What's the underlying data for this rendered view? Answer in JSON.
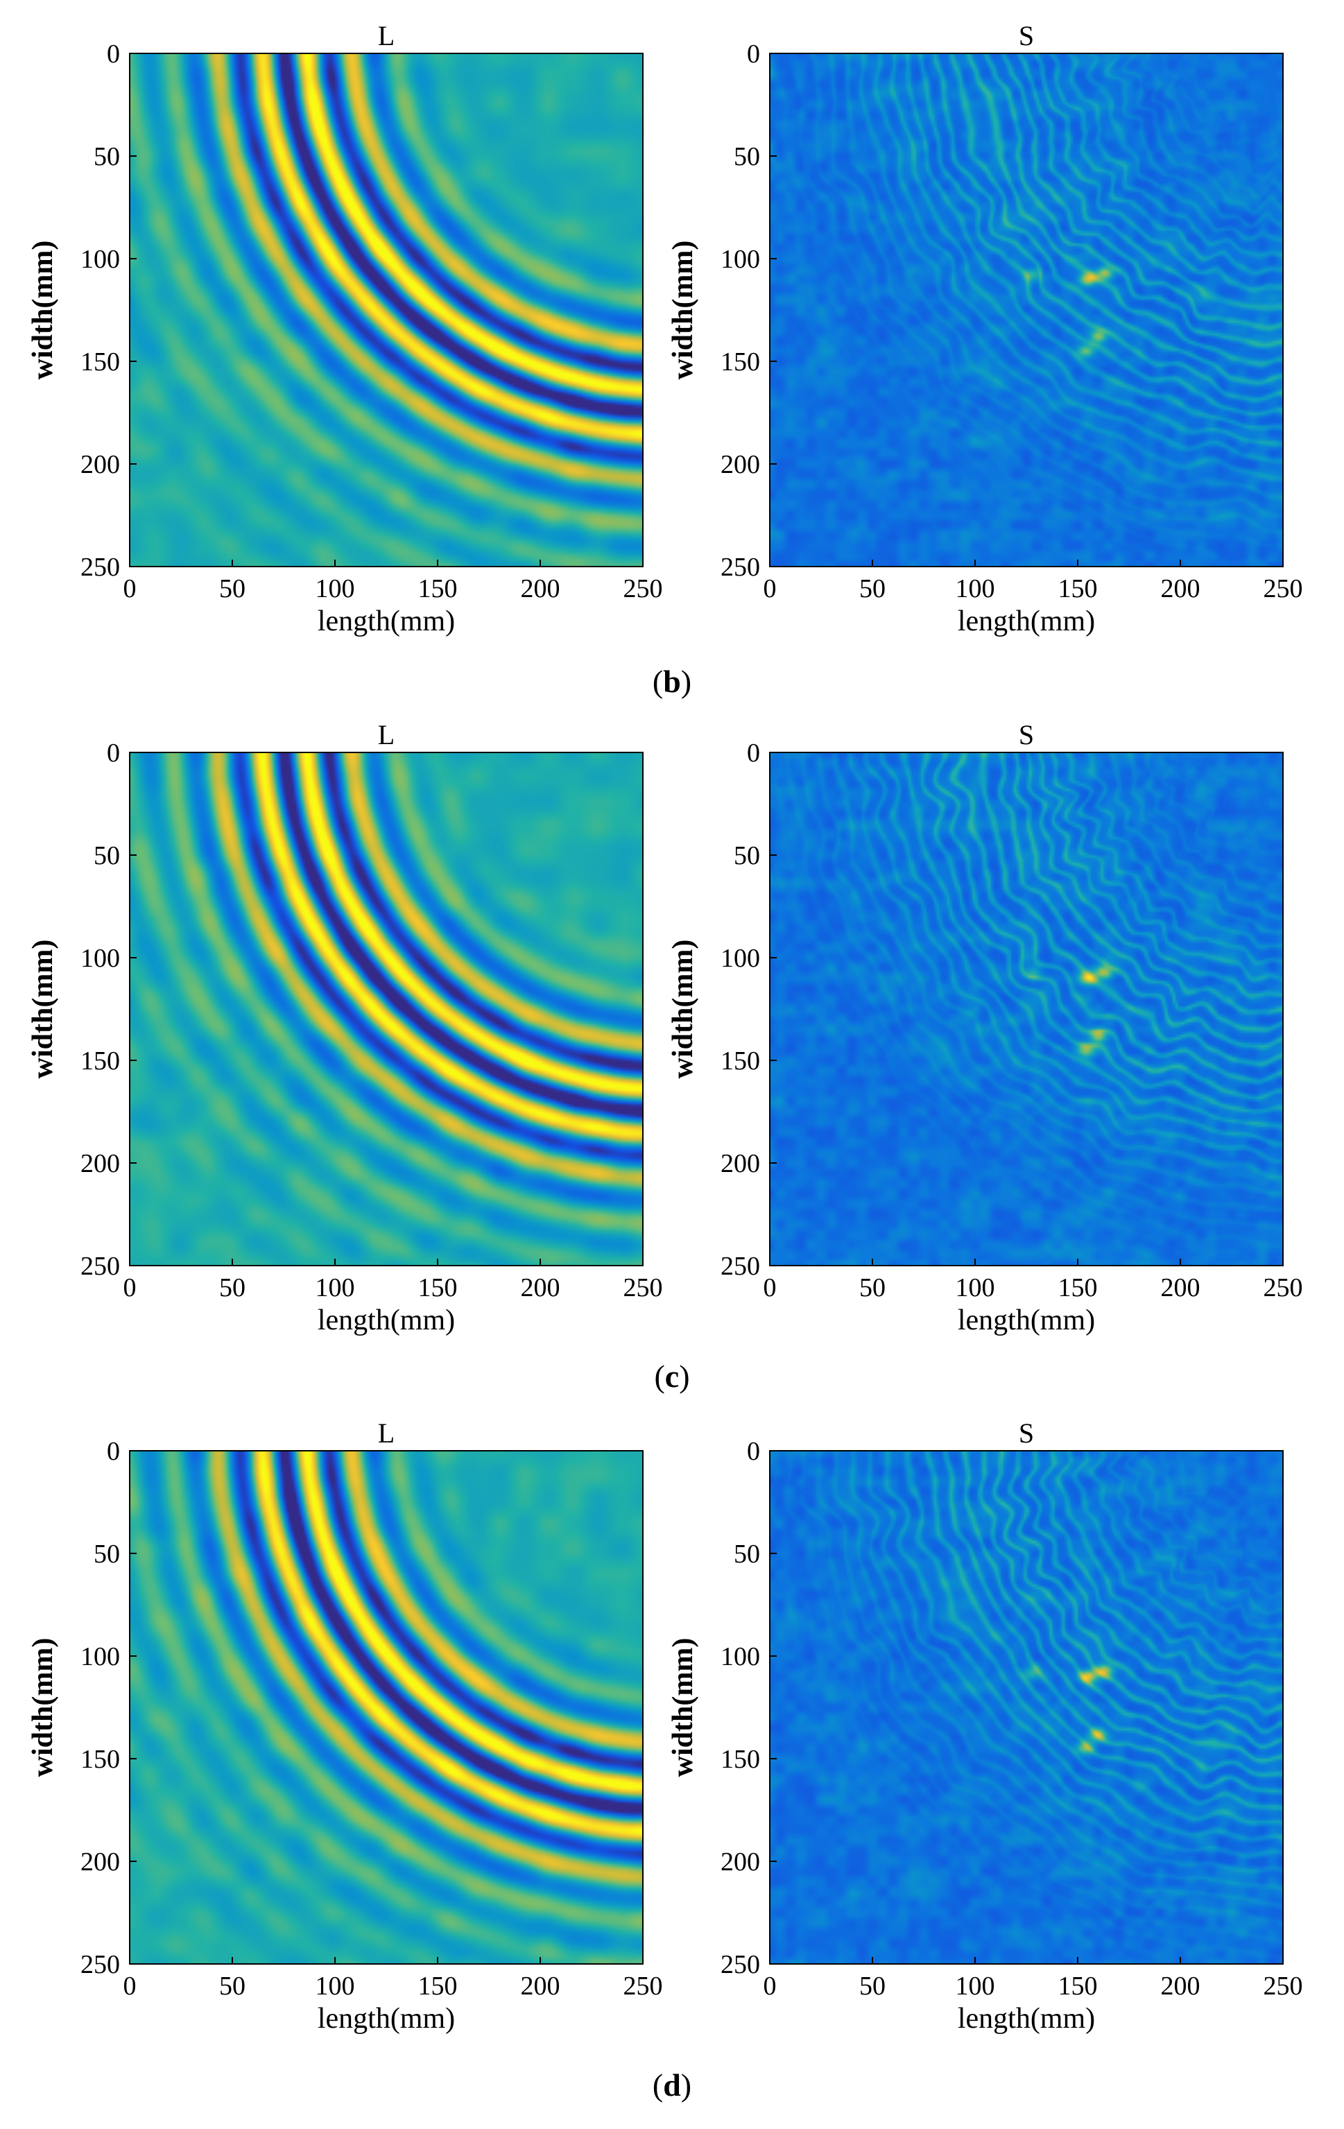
{
  "figure": {
    "panel_labels": [
      "(b)",
      "(c)",
      "(d)"
    ],
    "panel_letters": [
      "b",
      "c",
      "d"
    ]
  },
  "chart_data": [
    {
      "type": "heatmap",
      "panel": "b",
      "title": "L",
      "xlabel": "length(mm)",
      "ylabel": "width(mm)",
      "xlim": [
        0,
        250
      ],
      "ylim": [
        250,
        0
      ],
      "xticks": [
        0,
        50,
        100,
        150,
        200,
        250
      ],
      "yticks": [
        0,
        50,
        100,
        150,
        200,
        250
      ],
      "colormap": "parula",
      "field": "wavefront",
      "colors": {
        "background": "#2fb5a3",
        "low": "#3a2db8",
        "high": "#f8e61c",
        "mid": "#36c2a4"
      }
    },
    {
      "type": "heatmap",
      "panel": "b",
      "title": "S",
      "xlabel": "length(mm)",
      "ylabel": "width(mm)",
      "xlim": [
        0,
        250
      ],
      "ylim": [
        250,
        0
      ],
      "xticks": [
        0,
        50,
        100,
        150,
        200,
        250
      ],
      "yticks": [
        0,
        50,
        100,
        150,
        200,
        250
      ],
      "colormap": "parula",
      "field": "speckle",
      "colors": {
        "background": "#2a3fd8",
        "low": "#2530c8",
        "high": "#f2e02a",
        "mid": "#2fa0e8"
      }
    },
    {
      "type": "heatmap",
      "panel": "c",
      "title": "L",
      "xlabel": "length(mm)",
      "ylabel": "width(mm)",
      "xlim": [
        0,
        250
      ],
      "ylim": [
        250,
        0
      ],
      "xticks": [
        0,
        50,
        100,
        150,
        200,
        250
      ],
      "yticks": [
        0,
        50,
        100,
        150,
        200,
        250
      ],
      "colormap": "parula",
      "field": "wavefront",
      "colors": {
        "background": "#2fb5a3",
        "low": "#3a2db8",
        "high": "#f8e61c",
        "mid": "#36c2a4"
      }
    },
    {
      "type": "heatmap",
      "panel": "c",
      "title": "S",
      "xlabel": "length(mm)",
      "ylabel": "width(mm)",
      "xlim": [
        0,
        250
      ],
      "ylim": [
        250,
        0
      ],
      "xticks": [
        0,
        50,
        100,
        150,
        200,
        250
      ],
      "yticks": [
        0,
        50,
        100,
        150,
        200,
        250
      ],
      "colormap": "parula",
      "field": "speckle",
      "colors": {
        "background": "#2a3fd8",
        "low": "#2530c8",
        "high": "#f2e02a",
        "mid": "#2fa0e8"
      }
    },
    {
      "type": "heatmap",
      "panel": "d",
      "title": "L",
      "xlabel": "length(mm)",
      "ylabel": "width(mm)",
      "xlim": [
        0,
        250
      ],
      "ylim": [
        250,
        0
      ],
      "xticks": [
        0,
        50,
        100,
        150,
        200,
        250
      ],
      "yticks": [
        0,
        50,
        100,
        150,
        200,
        250
      ],
      "colormap": "parula",
      "field": "wavefront",
      "colors": {
        "background": "#2fb5a3",
        "low": "#3a2db8",
        "high": "#f8e61c",
        "mid": "#36c2a4"
      }
    },
    {
      "type": "heatmap",
      "panel": "d",
      "title": "S",
      "xlabel": "length(mm)",
      "ylabel": "width(mm)",
      "xlim": [
        0,
        250
      ],
      "ylim": [
        250,
        0
      ],
      "xticks": [
        0,
        50,
        100,
        150,
        200,
        250
      ],
      "yticks": [
        0,
        50,
        100,
        150,
        200,
        250
      ],
      "colormap": "parula",
      "field": "speckle",
      "colors": {
        "background": "#2a3fd8",
        "low": "#2530c8",
        "high": "#f2e02a",
        "mid": "#2fa0e8"
      }
    }
  ]
}
